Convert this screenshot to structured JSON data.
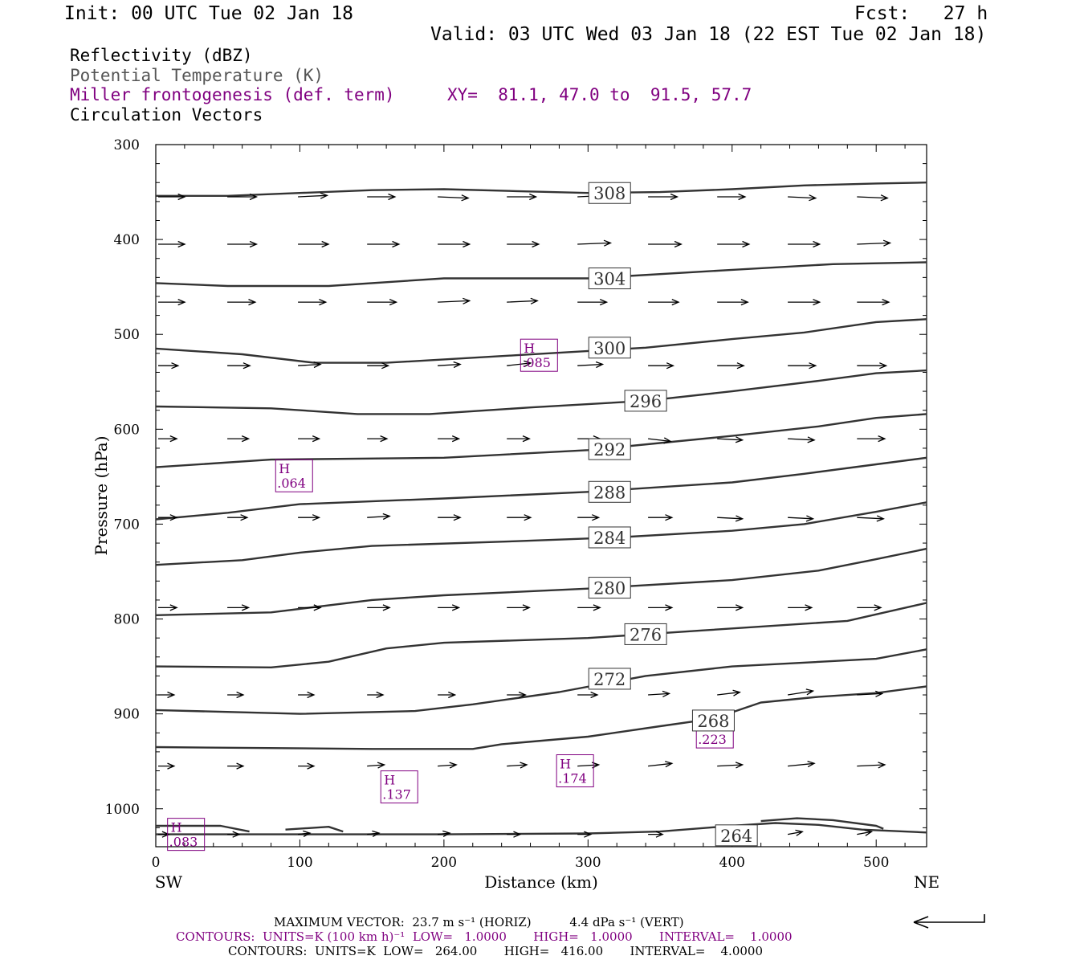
{
  "header": {
    "init": "Init: 00 UTC Tue 02 Jan 18",
    "fcst": "Fcst:   27 h",
    "valid": "Valid: 03 UTC Wed 03 Jan 18 (22 EST Tue 02 Jan 18)"
  },
  "legend": {
    "line1": "Reflectivity (dBZ)",
    "line2": "Potential Temperature (K)",
    "line3": "Miller frontogenesis (def. term)",
    "xy": "XY=  81.1, 47.0 to  91.5, 57.7",
    "line4": "Circulation Vectors"
  },
  "footer": {
    "max_vector": "MAXIMUM VECTOR:  23.7 m s⁻¹ (HORIZ)          4.4 dPa s⁻¹ (VERT)",
    "contours_purple": "CONTOURS:  UNITS=K (100 km h)⁻¹  LOW=   1.0000       HIGH=   1.0000       INTERVAL=    1.0000",
    "contours_black": "CONTOURS:  UNITS=K  LOW=   264.00       HIGH=   416.00       INTERVAL=    4.0000"
  },
  "colors": {
    "theta": "#333333",
    "fronto": "#800080",
    "vector": "#000000"
  },
  "chart_data": {
    "type": "line",
    "xlabel": "Distance (km)",
    "ylabel": "Pressure (hPa)",
    "xlim": [
      0,
      535
    ],
    "ylim": [
      300,
      1040
    ],
    "y_inverted": true,
    "x_ticks": [
      0,
      100,
      200,
      300,
      400,
      500
    ],
    "y_ticks": [
      300,
      400,
      500,
      600,
      700,
      800,
      900,
      1000
    ],
    "x_end_labels": [
      "SW",
      "NE"
    ],
    "series": [
      {
        "label": "308",
        "label_at": [
          315,
          351
        ],
        "points": [
          [
            0,
            354
          ],
          [
            50,
            354
          ],
          [
            100,
            351
          ],
          [
            150,
            348
          ],
          [
            200,
            347
          ],
          [
            250,
            349
          ],
          [
            300,
            351
          ],
          [
            350,
            350
          ],
          [
            400,
            347
          ],
          [
            450,
            343
          ],
          [
            500,
            341
          ],
          [
            535,
            340
          ]
        ]
      },
      {
        "label": "304",
        "label_at": [
          315,
          441
        ],
        "points": [
          [
            0,
            446
          ],
          [
            50,
            449
          ],
          [
            120,
            449
          ],
          [
            200,
            441
          ],
          [
            300,
            441
          ],
          [
            400,
            432
          ],
          [
            470,
            426
          ],
          [
            535,
            424
          ]
        ]
      },
      {
        "label": "300",
        "label_at": [
          315,
          514
        ],
        "points": [
          [
            0,
            515
          ],
          [
            60,
            521
          ],
          [
            110,
            530
          ],
          [
            160,
            530
          ],
          [
            250,
            522
          ],
          [
            340,
            514
          ],
          [
            400,
            505
          ],
          [
            450,
            498
          ],
          [
            500,
            487
          ],
          [
            535,
            484
          ]
        ]
      },
      {
        "label": "296",
        "label_at": [
          340,
          570
        ],
        "points": [
          [
            0,
            576
          ],
          [
            80,
            578
          ],
          [
            140,
            584
          ],
          [
            190,
            584
          ],
          [
            260,
            577
          ],
          [
            340,
            570
          ],
          [
            400,
            560
          ],
          [
            460,
            549
          ],
          [
            500,
            541
          ],
          [
            535,
            538
          ]
        ]
      },
      {
        "label": "292",
        "label_at": [
          315,
          621
        ],
        "points": [
          [
            0,
            640
          ],
          [
            80,
            632
          ],
          [
            200,
            630
          ],
          [
            300,
            622
          ],
          [
            400,
            607
          ],
          [
            460,
            597
          ],
          [
            500,
            588
          ],
          [
            535,
            584
          ]
        ]
      },
      {
        "label": "288",
        "label_at": [
          315,
          666
        ],
        "points": [
          [
            0,
            695
          ],
          [
            50,
            688
          ],
          [
            100,
            679
          ],
          [
            200,
            673
          ],
          [
            300,
            666
          ],
          [
            400,
            656
          ],
          [
            450,
            647
          ],
          [
            500,
            637
          ],
          [
            535,
            630
          ]
        ]
      },
      {
        "label": "284",
        "label_at": [
          315,
          714
        ],
        "points": [
          [
            0,
            743
          ],
          [
            60,
            738
          ],
          [
            100,
            730
          ],
          [
            150,
            723
          ],
          [
            250,
            718
          ],
          [
            320,
            714
          ],
          [
            400,
            707
          ],
          [
            450,
            700
          ],
          [
            500,
            687
          ],
          [
            535,
            677
          ]
        ]
      },
      {
        "label": "280",
        "label_at": [
          315,
          767
        ],
        "points": [
          [
            0,
            796
          ],
          [
            80,
            793
          ],
          [
            150,
            780
          ],
          [
            200,
            775
          ],
          [
            300,
            768
          ],
          [
            400,
            759
          ],
          [
            460,
            749
          ],
          [
            500,
            737
          ],
          [
            535,
            726
          ]
        ]
      },
      {
        "label": "276",
        "label_at": [
          340,
          816
        ],
        "points": [
          [
            0,
            850
          ],
          [
            80,
            851
          ],
          [
            120,
            845
          ],
          [
            160,
            831
          ],
          [
            200,
            825
          ],
          [
            300,
            820
          ],
          [
            380,
            812
          ],
          [
            480,
            802
          ],
          [
            535,
            783
          ]
        ]
      },
      {
        "label": "272",
        "label_at": [
          315,
          863
        ],
        "points": [
          [
            0,
            896
          ],
          [
            100,
            900
          ],
          [
            180,
            897
          ],
          [
            220,
            890
          ],
          [
            280,
            877
          ],
          [
            340,
            860
          ],
          [
            400,
            850
          ],
          [
            500,
            842
          ],
          [
            535,
            832
          ]
        ]
      },
      {
        "label": "268",
        "label_at": [
          387,
          907
        ],
        "points": [
          [
            0,
            935
          ],
          [
            150,
            937
          ],
          [
            220,
            937
          ],
          [
            240,
            932
          ],
          [
            300,
            924
          ],
          [
            350,
            913
          ],
          [
            387,
            905
          ],
          [
            420,
            888
          ],
          [
            460,
            882
          ],
          [
            500,
            878
          ],
          [
            535,
            871
          ]
        ]
      },
      {
        "label": "264",
        "label_at": [
          403,
          1028
        ],
        "points": [
          [
            0,
            1027
          ],
          [
            100,
            1027
          ],
          [
            200,
            1027
          ],
          [
            300,
            1026
          ],
          [
            350,
            1024
          ],
          [
            400,
            1018
          ],
          [
            430,
            1015
          ],
          [
            460,
            1017
          ],
          [
            490,
            1022
          ],
          [
            535,
            1025
          ]
        ]
      },
      {
        "label": "",
        "label_at": null,
        "points": [
          [
            0,
            1018
          ],
          [
            45,
            1018
          ],
          [
            65,
            1024
          ]
        ]
      },
      {
        "label": "",
        "label_at": null,
        "points": [
          [
            90,
            1022
          ],
          [
            120,
            1019
          ],
          [
            130,
            1024
          ]
        ]
      },
      {
        "label": "",
        "label_at": null,
        "points": [
          [
            420,
            1013
          ],
          [
            445,
            1010
          ],
          [
            470,
            1012
          ],
          [
            500,
            1018
          ],
          [
            505,
            1021
          ]
        ]
      }
    ],
    "fronto_maxima": [
      {
        "label": "H",
        "value": ".064",
        "x": 96,
        "p": 649
      },
      {
        "label": "H",
        "value": ".085",
        "x": 266,
        "p": 522
      },
      {
        "label": "H",
        "value": ".223",
        "x": 388,
        "p": 919
      },
      {
        "label": "H",
        "value": ".174",
        "x": 291,
        "p": 960
      },
      {
        "label": "H",
        "value": ".137",
        "x": 169,
        "p": 977
      },
      {
        "label": "H",
        "value": ".083",
        "x": 21,
        "p": 1027
      }
    ],
    "vectors": {
      "x": [
        0,
        48,
        97,
        145,
        194,
        242,
        291,
        340,
        388,
        437,
        485
      ],
      "p": [
        355,
        405,
        466,
        533,
        610,
        693,
        788,
        880,
        955,
        1027
      ],
      "max_horiz": 23.7,
      "max_vert": 4.4,
      "rows": [
        [
          [
            20,
            0
          ],
          [
            22,
            0
          ],
          [
            22,
            1
          ],
          [
            21,
            0
          ],
          [
            23,
            -1
          ],
          [
            22,
            0
          ],
          [
            22,
            1
          ],
          [
            22,
            0
          ],
          [
            21,
            0
          ],
          [
            21,
            -1
          ],
          [
            23,
            -1
          ]
        ],
        [
          [
            20,
            0
          ],
          [
            22,
            0
          ],
          [
            23,
            0
          ],
          [
            24,
            0
          ],
          [
            24,
            0
          ],
          [
            24,
            0
          ],
          [
            25,
            1
          ],
          [
            25,
            0
          ],
          [
            24,
            0
          ],
          [
            24,
            0
          ],
          [
            25,
            1
          ]
        ],
        [
          [
            20,
            0
          ],
          [
            21,
            0
          ],
          [
            21,
            0
          ],
          [
            22,
            0
          ],
          [
            24,
            1
          ],
          [
            23,
            1
          ],
          [
            22,
            0
          ],
          [
            23,
            0
          ],
          [
            23,
            0
          ],
          [
            24,
            0
          ],
          [
            24,
            0
          ]
        ],
        [
          [
            15,
            0
          ],
          [
            17,
            0
          ],
          [
            17,
            1
          ],
          [
            16,
            0
          ],
          [
            17,
            1
          ],
          [
            18,
            2
          ],
          [
            19,
            1
          ],
          [
            19,
            0
          ],
          [
            20,
            0
          ],
          [
            21,
            0
          ],
          [
            22,
            0
          ]
        ],
        [
          [
            14,
            0
          ],
          [
            16,
            0
          ],
          [
            16,
            0
          ],
          [
            15,
            0
          ],
          [
            16,
            0
          ],
          [
            17,
            0
          ],
          [
            17,
            0
          ],
          [
            17,
            -2
          ],
          [
            19,
            -1
          ],
          [
            20,
            -1
          ],
          [
            21,
            0
          ]
        ],
        [
          [
            14,
            0
          ],
          [
            15,
            0
          ],
          [
            16,
            0
          ],
          [
            17,
            1
          ],
          [
            17,
            0
          ],
          [
            18,
            0
          ],
          [
            16,
            0
          ],
          [
            18,
            0
          ],
          [
            19,
            -1
          ],
          [
            19,
            -1
          ],
          [
            20,
            -1
          ]
        ],
        [
          [
            14,
            0
          ],
          [
            16,
            0
          ],
          [
            17,
            0
          ],
          [
            17,
            0
          ],
          [
            16,
            0
          ],
          [
            17,
            0
          ],
          [
            17,
            0
          ],
          [
            18,
            0
          ],
          [
            19,
            0
          ],
          [
            18,
            0
          ],
          [
            18,
            0
          ]
        ],
        [
          [
            12,
            0
          ],
          [
            12,
            0
          ],
          [
            12,
            0
          ],
          [
            12,
            0
          ],
          [
            13,
            0
          ],
          [
            14,
            0
          ],
          [
            15,
            0
          ],
          [
            16,
            1
          ],
          [
            17,
            2
          ],
          [
            19,
            3
          ],
          [
            19,
            1
          ]
        ],
        [
          [
            12,
            0
          ],
          [
            12,
            0
          ],
          [
            12,
            0
          ],
          [
            13,
            1
          ],
          [
            14,
            1
          ],
          [
            15,
            1
          ],
          [
            16,
            1
          ],
          [
            18,
            2
          ],
          [
            19,
            1
          ],
          [
            20,
            2
          ],
          [
            21,
            1
          ]
        ],
        [
          [
            8,
            0
          ],
          [
            9,
            0
          ],
          [
            9,
            1
          ],
          [
            9,
            1
          ],
          [
            9,
            1
          ],
          [
            10,
            0
          ],
          [
            10,
            0
          ],
          [
            11,
            0
          ],
          [
            12,
            0
          ],
          [
            11,
            2
          ],
          [
            11,
            2
          ]
        ]
      ]
    },
    "reference_arrow": "horizontal pointing left, lower right"
  }
}
